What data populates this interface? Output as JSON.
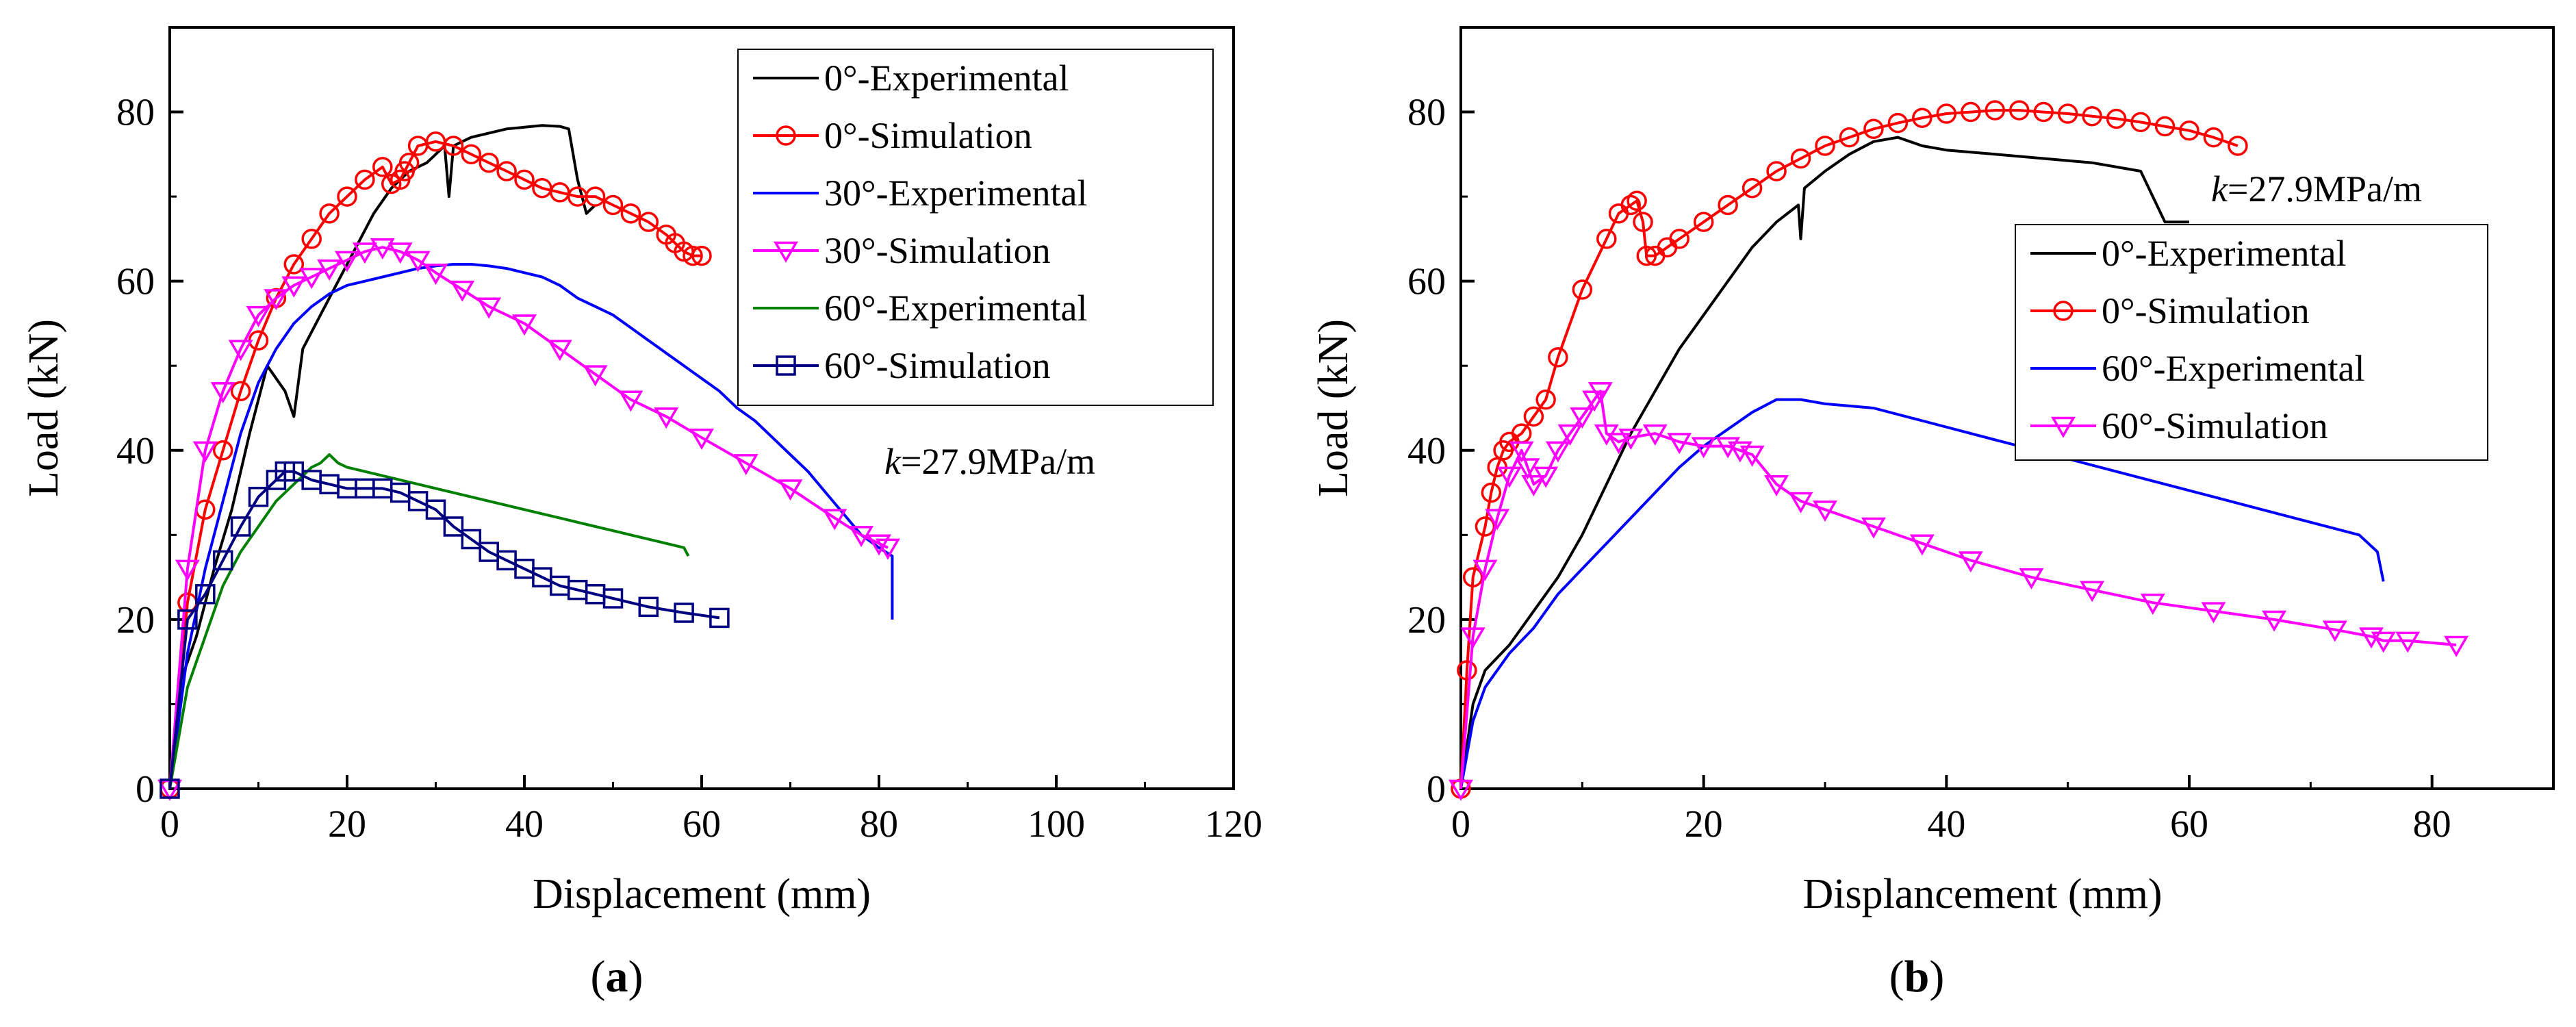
{
  "chart_data": [
    {
      "type": "line",
      "panel_label": "a",
      "xlabel": "Displacement (mm)",
      "ylabel": "Load (kN)",
      "xlim": [
        0,
        120
      ],
      "ylim": [
        0,
        90
      ],
      "xticks": [
        0,
        20,
        40,
        60,
        80,
        100,
        120
      ],
      "yticks": [
        0,
        20,
        40,
        60,
        80
      ],
      "annotation": {
        "k_symbol": "k",
        "k_value": "=27.9MPa/m"
      },
      "series": [
        {
          "name": "0°-Experimental",
          "color": "#000000",
          "marker": "none",
          "x": [
            0,
            1,
            3,
            5,
            7,
            9,
            11,
            13,
            14,
            15,
            17,
            19,
            21,
            23,
            25,
            27,
            29,
            31,
            31.5,
            32,
            34,
            36,
            38,
            40,
            42,
            44,
            45,
            46,
            47,
            48
          ],
          "y": [
            0,
            12,
            18,
            26,
            33,
            42,
            50,
            47,
            44,
            52,
            56,
            60,
            64,
            68,
            71,
            73,
            74,
            76,
            70,
            76,
            77,
            77.5,
            78,
            78.2,
            78.4,
            78.3,
            78,
            72,
            68,
            69
          ]
        },
        {
          "name": "0°-Simulation",
          "color": "#ff0000",
          "marker": "circle",
          "x": [
            0,
            2,
            4,
            6,
            8,
            10,
            12,
            14,
            16,
            18,
            20,
            22,
            24,
            25,
            26,
            26.5,
            27,
            28,
            30,
            32,
            34,
            36,
            38,
            40,
            42,
            44,
            46,
            48,
            50,
            52,
            54,
            56,
            57,
            58,
            59,
            60
          ],
          "y": [
            0,
            22,
            33,
            40,
            47,
            53,
            58,
            62,
            65,
            68,
            70,
            72,
            73.5,
            71.5,
            72,
            73,
            74,
            76,
            76.5,
            76,
            75,
            74,
            73,
            72,
            71,
            70.5,
            70,
            70,
            69,
            68,
            67,
            65.5,
            64.5,
            63.5,
            63,
            63
          ]
        },
        {
          "name": "30°-Experimental",
          "color": "#0000ff",
          "marker": "none",
          "x": [
            0,
            2,
            4,
            6,
            8,
            10,
            12,
            14,
            16,
            18,
            20,
            22,
            24,
            26,
            28,
            30,
            32,
            34,
            36,
            38,
            40,
            42,
            44,
            46,
            48,
            50,
            52,
            54,
            56,
            58,
            60,
            62,
            64,
            66,
            68,
            70,
            72,
            74,
            76,
            78,
            80,
            81.5,
            81.5
          ],
          "y": [
            0,
            16,
            26,
            34,
            42,
            48,
            52,
            55,
            57,
            58.5,
            59.5,
            60,
            60.5,
            61,
            61.5,
            61.8,
            62,
            62,
            61.8,
            61.5,
            61,
            60.5,
            59.5,
            58,
            57,
            56,
            54.5,
            53,
            51.5,
            50,
            48.5,
            47,
            45,
            43.5,
            41.5,
            39.5,
            37.5,
            35,
            32.5,
            30,
            28.5,
            27.5,
            20
          ]
        },
        {
          "name": "30°-Simulation",
          "color": "#ff00ff",
          "marker": "triangle-down",
          "x": [
            0,
            2,
            4,
            6,
            8,
            10,
            12,
            14,
            16,
            18,
            20,
            22,
            24,
            26,
            28,
            30,
            33,
            36,
            40,
            44,
            48,
            52,
            56,
            60,
            65,
            70,
            75,
            78,
            80,
            81
          ],
          "y": [
            0,
            26,
            40,
            47,
            52,
            56,
            58,
            59.5,
            60.5,
            61.5,
            62.5,
            63.5,
            64,
            63.5,
            62.5,
            61,
            59,
            57,
            55,
            52,
            49,
            46,
            44,
            41.5,
            38.5,
            35.5,
            32,
            30,
            29,
            28.5
          ]
        },
        {
          "name": "60°-Experimental",
          "color": "#008000",
          "marker": "none",
          "x": [
            0,
            2,
            4,
            6,
            8,
            10,
            12,
            14,
            16,
            17,
            18,
            19,
            20,
            24,
            28,
            32,
            36,
            40,
            44,
            48,
            52,
            56,
            58,
            58.5
          ],
          "y": [
            0,
            12,
            18,
            24,
            28,
            31,
            34,
            36,
            38,
            38.5,
            39.5,
            38.5,
            38,
            37,
            36,
            35,
            34,
            33,
            32,
            31,
            30,
            29,
            28.5,
            27.5
          ]
        },
        {
          "name": "60°-Simulation",
          "color": "#000080",
          "marker": "square",
          "x": [
            0,
            2,
            4,
            6,
            8,
            10,
            12,
            13,
            14,
            16,
            18,
            20,
            22,
            24,
            26,
            28,
            30,
            32,
            34,
            36,
            38,
            40,
            42,
            44,
            46,
            48,
            50,
            54,
            58,
            62
          ],
          "y": [
            0,
            20,
            23,
            27,
            31,
            34.5,
            36.5,
            37.5,
            37.5,
            36.5,
            36,
            35.5,
            35.5,
            35.5,
            35,
            34,
            33,
            31,
            29.5,
            28,
            27,
            26,
            25,
            24,
            23.5,
            23,
            22.5,
            21.5,
            20.8,
            20.2
          ]
        }
      ]
    },
    {
      "type": "line",
      "panel_label": "b",
      "xlabel": "Displancement (mm)",
      "ylabel": "Load (kN)",
      "xlim": [
        0,
        90
      ],
      "ylim": [
        0,
        90
      ],
      "xticks": [
        0,
        20,
        40,
        60,
        80
      ],
      "yticks": [
        0,
        20,
        40,
        60,
        80
      ],
      "annotation": {
        "k_symbol": "k",
        "k_value": "=27.9MPa/m"
      },
      "series": [
        {
          "name": "0°-Experimental",
          "color": "#000000",
          "marker": "none",
          "x": [
            0,
            1,
            2,
            4,
            6,
            8,
            10,
            12,
            14,
            16,
            18,
            20,
            22,
            24,
            26,
            27.8,
            28,
            28.3,
            30,
            32,
            34,
            36,
            38,
            40,
            44,
            48,
            52,
            56,
            57,
            58,
            60
          ],
          "y": [
            0,
            10,
            14,
            17,
            21,
            25,
            30,
            36,
            42,
            47,
            52,
            56,
            60,
            64,
            67,
            69,
            65,
            71,
            73,
            75,
            76.5,
            77,
            76,
            75.5,
            75,
            74.5,
            74,
            73,
            70,
            67,
            67
          ]
        },
        {
          "name": "0°-Simulation",
          "color": "#ff0000",
          "marker": "circle",
          "x": [
            0,
            0.5,
            1,
            2,
            2.5,
            3,
            3.5,
            4,
            5,
            6,
            7,
            8,
            10,
            12,
            13,
            14,
            14.5,
            15,
            15.3,
            16,
            17,
            18,
            20,
            22,
            24,
            26,
            28,
            30,
            32,
            34,
            36,
            38,
            40,
            42,
            44,
            46,
            48,
            50,
            52,
            54,
            56,
            58,
            60,
            62,
            64
          ],
          "y": [
            0,
            14,
            25,
            31,
            35,
            38,
            40,
            41,
            42,
            44,
            46,
            51,
            59,
            65,
            68,
            69,
            69.5,
            67,
            63,
            63,
            64,
            65,
            67,
            69,
            71,
            73,
            74.5,
            76,
            77,
            78,
            78.7,
            79.3,
            79.8,
            80,
            80.2,
            80.2,
            80,
            79.8,
            79.5,
            79.2,
            78.8,
            78.3,
            77.8,
            77,
            76
          ]
        },
        {
          "name": "60°-Experimental",
          "color": "#0000ff",
          "marker": "none",
          "x": [
            0,
            1,
            2,
            4,
            6,
            8,
            10,
            12,
            14,
            16,
            18,
            20,
            22,
            24,
            26,
            28,
            30,
            34,
            38,
            42,
            46,
            50,
            54,
            58,
            62,
            66,
            70,
            74,
            75.5,
            76
          ],
          "y": [
            0,
            8,
            12,
            16,
            19,
            23,
            26,
            29,
            32,
            35,
            38,
            40.5,
            42.5,
            44.5,
            46,
            46,
            45.5,
            45,
            43.5,
            42,
            40.5,
            39,
            37.5,
            36,
            34.5,
            33,
            31.5,
            30,
            28,
            24.5
          ]
        },
        {
          "name": "60°-Simulation",
          "color": "#ff00ff",
          "marker": "triangle-down",
          "x": [
            0,
            1,
            2,
            3,
            4,
            5,
            5.5,
            6,
            7,
            8,
            9,
            10,
            11,
            11.5,
            12,
            13,
            14,
            16,
            18,
            20,
            22,
            23,
            24,
            26,
            28,
            30,
            34,
            38,
            42,
            47,
            52,
            57,
            62,
            67,
            72,
            75,
            76,
            78,
            82
          ],
          "y": [
            0,
            18,
            26,
            32,
            37,
            40,
            38,
            36,
            37,
            40,
            42,
            44,
            46,
            47,
            42,
            41,
            41.5,
            42,
            41,
            40.5,
            40.5,
            40,
            39.5,
            36,
            34,
            33,
            31,
            29,
            27,
            25,
            23.5,
            22,
            21,
            20,
            18.8,
            18,
            17.5,
            17.5,
            17
          ]
        }
      ]
    }
  ]
}
